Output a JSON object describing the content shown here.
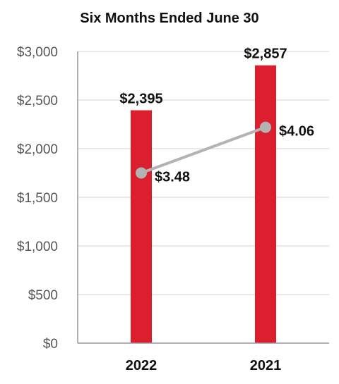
{
  "chart_data": {
    "type": "bar",
    "title": "Six Months Ended June 30",
    "categories": [
      "2022",
      "2021"
    ],
    "xlabel": "",
    "ylabel": "",
    "ylim": [
      0,
      3000
    ],
    "yticks": [
      0,
      500,
      1000,
      1500,
      2000,
      2500,
      3000
    ],
    "ytick_labels": [
      "$0",
      "$500",
      "$1,000",
      "$1,500",
      "$2,000",
      "$2,500",
      "$3,000"
    ],
    "grid": true,
    "series": [
      {
        "type": "bar",
        "values": [
          2395,
          2857
        ],
        "labels": [
          "$2,395",
          "$2,857"
        ],
        "color": "#dc1f2e"
      },
      {
        "type": "line",
        "values": [
          3.48,
          4.06
        ],
        "labels": [
          "$3.48",
          "$4.06"
        ],
        "color": "#b3b3b3"
      }
    ]
  }
}
